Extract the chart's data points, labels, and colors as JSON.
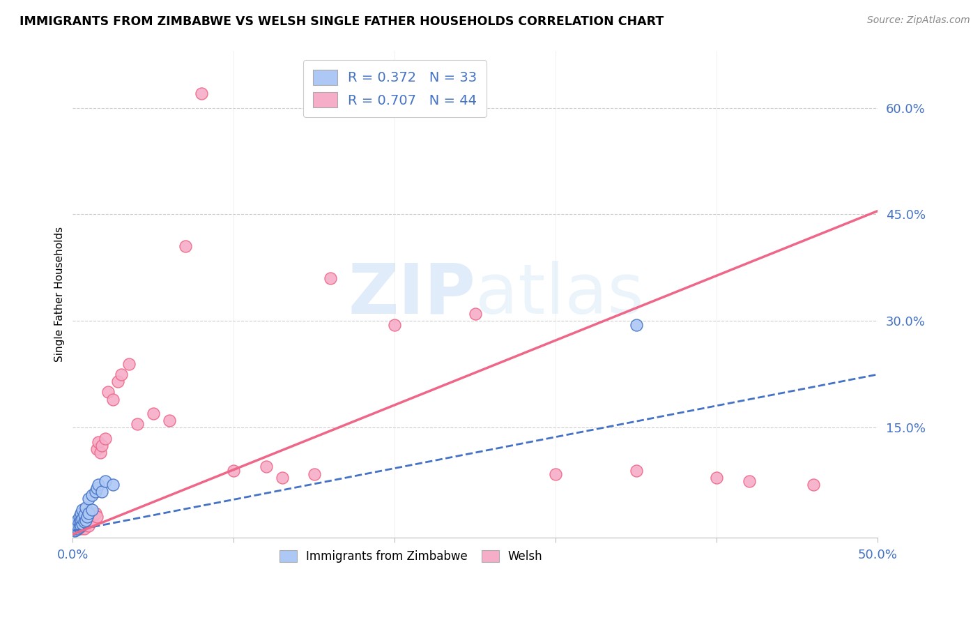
{
  "title": "IMMIGRANTS FROM ZIMBABWE VS WELSH SINGLE FATHER HOUSEHOLDS CORRELATION CHART",
  "source": "Source: ZipAtlas.com",
  "ylabel": "Single Father Households",
  "yticks": [
    "15.0%",
    "30.0%",
    "45.0%",
    "60.0%"
  ],
  "ytick_vals": [
    0.15,
    0.3,
    0.45,
    0.6
  ],
  "xlim": [
    0.0,
    0.5
  ],
  "ylim": [
    -0.005,
    0.68
  ],
  "legend_blue_label": "R = 0.372   N = 33",
  "legend_pink_label": "R = 0.707   N = 44",
  "blue_color": "#adc8f5",
  "pink_color": "#f5adc8",
  "blue_line_color": "#4472c4",
  "pink_line_color": "#ee6688",
  "watermark_zip": "ZIP",
  "watermark_atlas": "atlas",
  "blue_scatter": [
    [
      0.001,
      0.005
    ],
    [
      0.001,
      0.008
    ],
    [
      0.002,
      0.006
    ],
    [
      0.002,
      0.01
    ],
    [
      0.002,
      0.015
    ],
    [
      0.003,
      0.008
    ],
    [
      0.003,
      0.012
    ],
    [
      0.003,
      0.02
    ],
    [
      0.004,
      0.01
    ],
    [
      0.004,
      0.018
    ],
    [
      0.004,
      0.025
    ],
    [
      0.005,
      0.012
    ],
    [
      0.005,
      0.02
    ],
    [
      0.005,
      0.03
    ],
    [
      0.006,
      0.015
    ],
    [
      0.006,
      0.022
    ],
    [
      0.006,
      0.035
    ],
    [
      0.007,
      0.018
    ],
    [
      0.007,
      0.028
    ],
    [
      0.008,
      0.02
    ],
    [
      0.008,
      0.038
    ],
    [
      0.009,
      0.025
    ],
    [
      0.01,
      0.03
    ],
    [
      0.01,
      0.05
    ],
    [
      0.012,
      0.035
    ],
    [
      0.012,
      0.055
    ],
    [
      0.014,
      0.06
    ],
    [
      0.015,
      0.065
    ],
    [
      0.016,
      0.07
    ],
    [
      0.018,
      0.06
    ],
    [
      0.02,
      0.075
    ],
    [
      0.025,
      0.07
    ],
    [
      0.35,
      0.295
    ]
  ],
  "pink_scatter": [
    [
      0.002,
      0.008
    ],
    [
      0.003,
      0.01
    ],
    [
      0.004,
      0.012
    ],
    [
      0.005,
      0.008
    ],
    [
      0.005,
      0.015
    ],
    [
      0.006,
      0.012
    ],
    [
      0.007,
      0.008
    ],
    [
      0.007,
      0.018
    ],
    [
      0.008,
      0.015
    ],
    [
      0.008,
      0.022
    ],
    [
      0.009,
      0.018
    ],
    [
      0.01,
      0.012
    ],
    [
      0.01,
      0.025
    ],
    [
      0.012,
      0.02
    ],
    [
      0.013,
      0.028
    ],
    [
      0.014,
      0.03
    ],
    [
      0.015,
      0.025
    ],
    [
      0.015,
      0.12
    ],
    [
      0.016,
      0.13
    ],
    [
      0.017,
      0.115
    ],
    [
      0.018,
      0.125
    ],
    [
      0.02,
      0.135
    ],
    [
      0.022,
      0.2
    ],
    [
      0.025,
      0.19
    ],
    [
      0.028,
      0.215
    ],
    [
      0.03,
      0.225
    ],
    [
      0.035,
      0.24
    ],
    [
      0.04,
      0.155
    ],
    [
      0.05,
      0.17
    ],
    [
      0.06,
      0.16
    ],
    [
      0.07,
      0.405
    ],
    [
      0.1,
      0.09
    ],
    [
      0.12,
      0.095
    ],
    [
      0.13,
      0.08
    ],
    [
      0.15,
      0.085
    ],
    [
      0.16,
      0.36
    ],
    [
      0.2,
      0.295
    ],
    [
      0.25,
      0.31
    ],
    [
      0.3,
      0.085
    ],
    [
      0.35,
      0.09
    ],
    [
      0.4,
      0.08
    ],
    [
      0.42,
      0.075
    ],
    [
      0.46,
      0.07
    ],
    [
      0.08,
      0.62
    ]
  ],
  "blue_trend_x": [
    0.0,
    0.5
  ],
  "blue_trend_y": [
    0.005,
    0.225
  ],
  "pink_trend_x": [
    0.0,
    0.5
  ],
  "pink_trend_y": [
    0.0,
    0.455
  ]
}
